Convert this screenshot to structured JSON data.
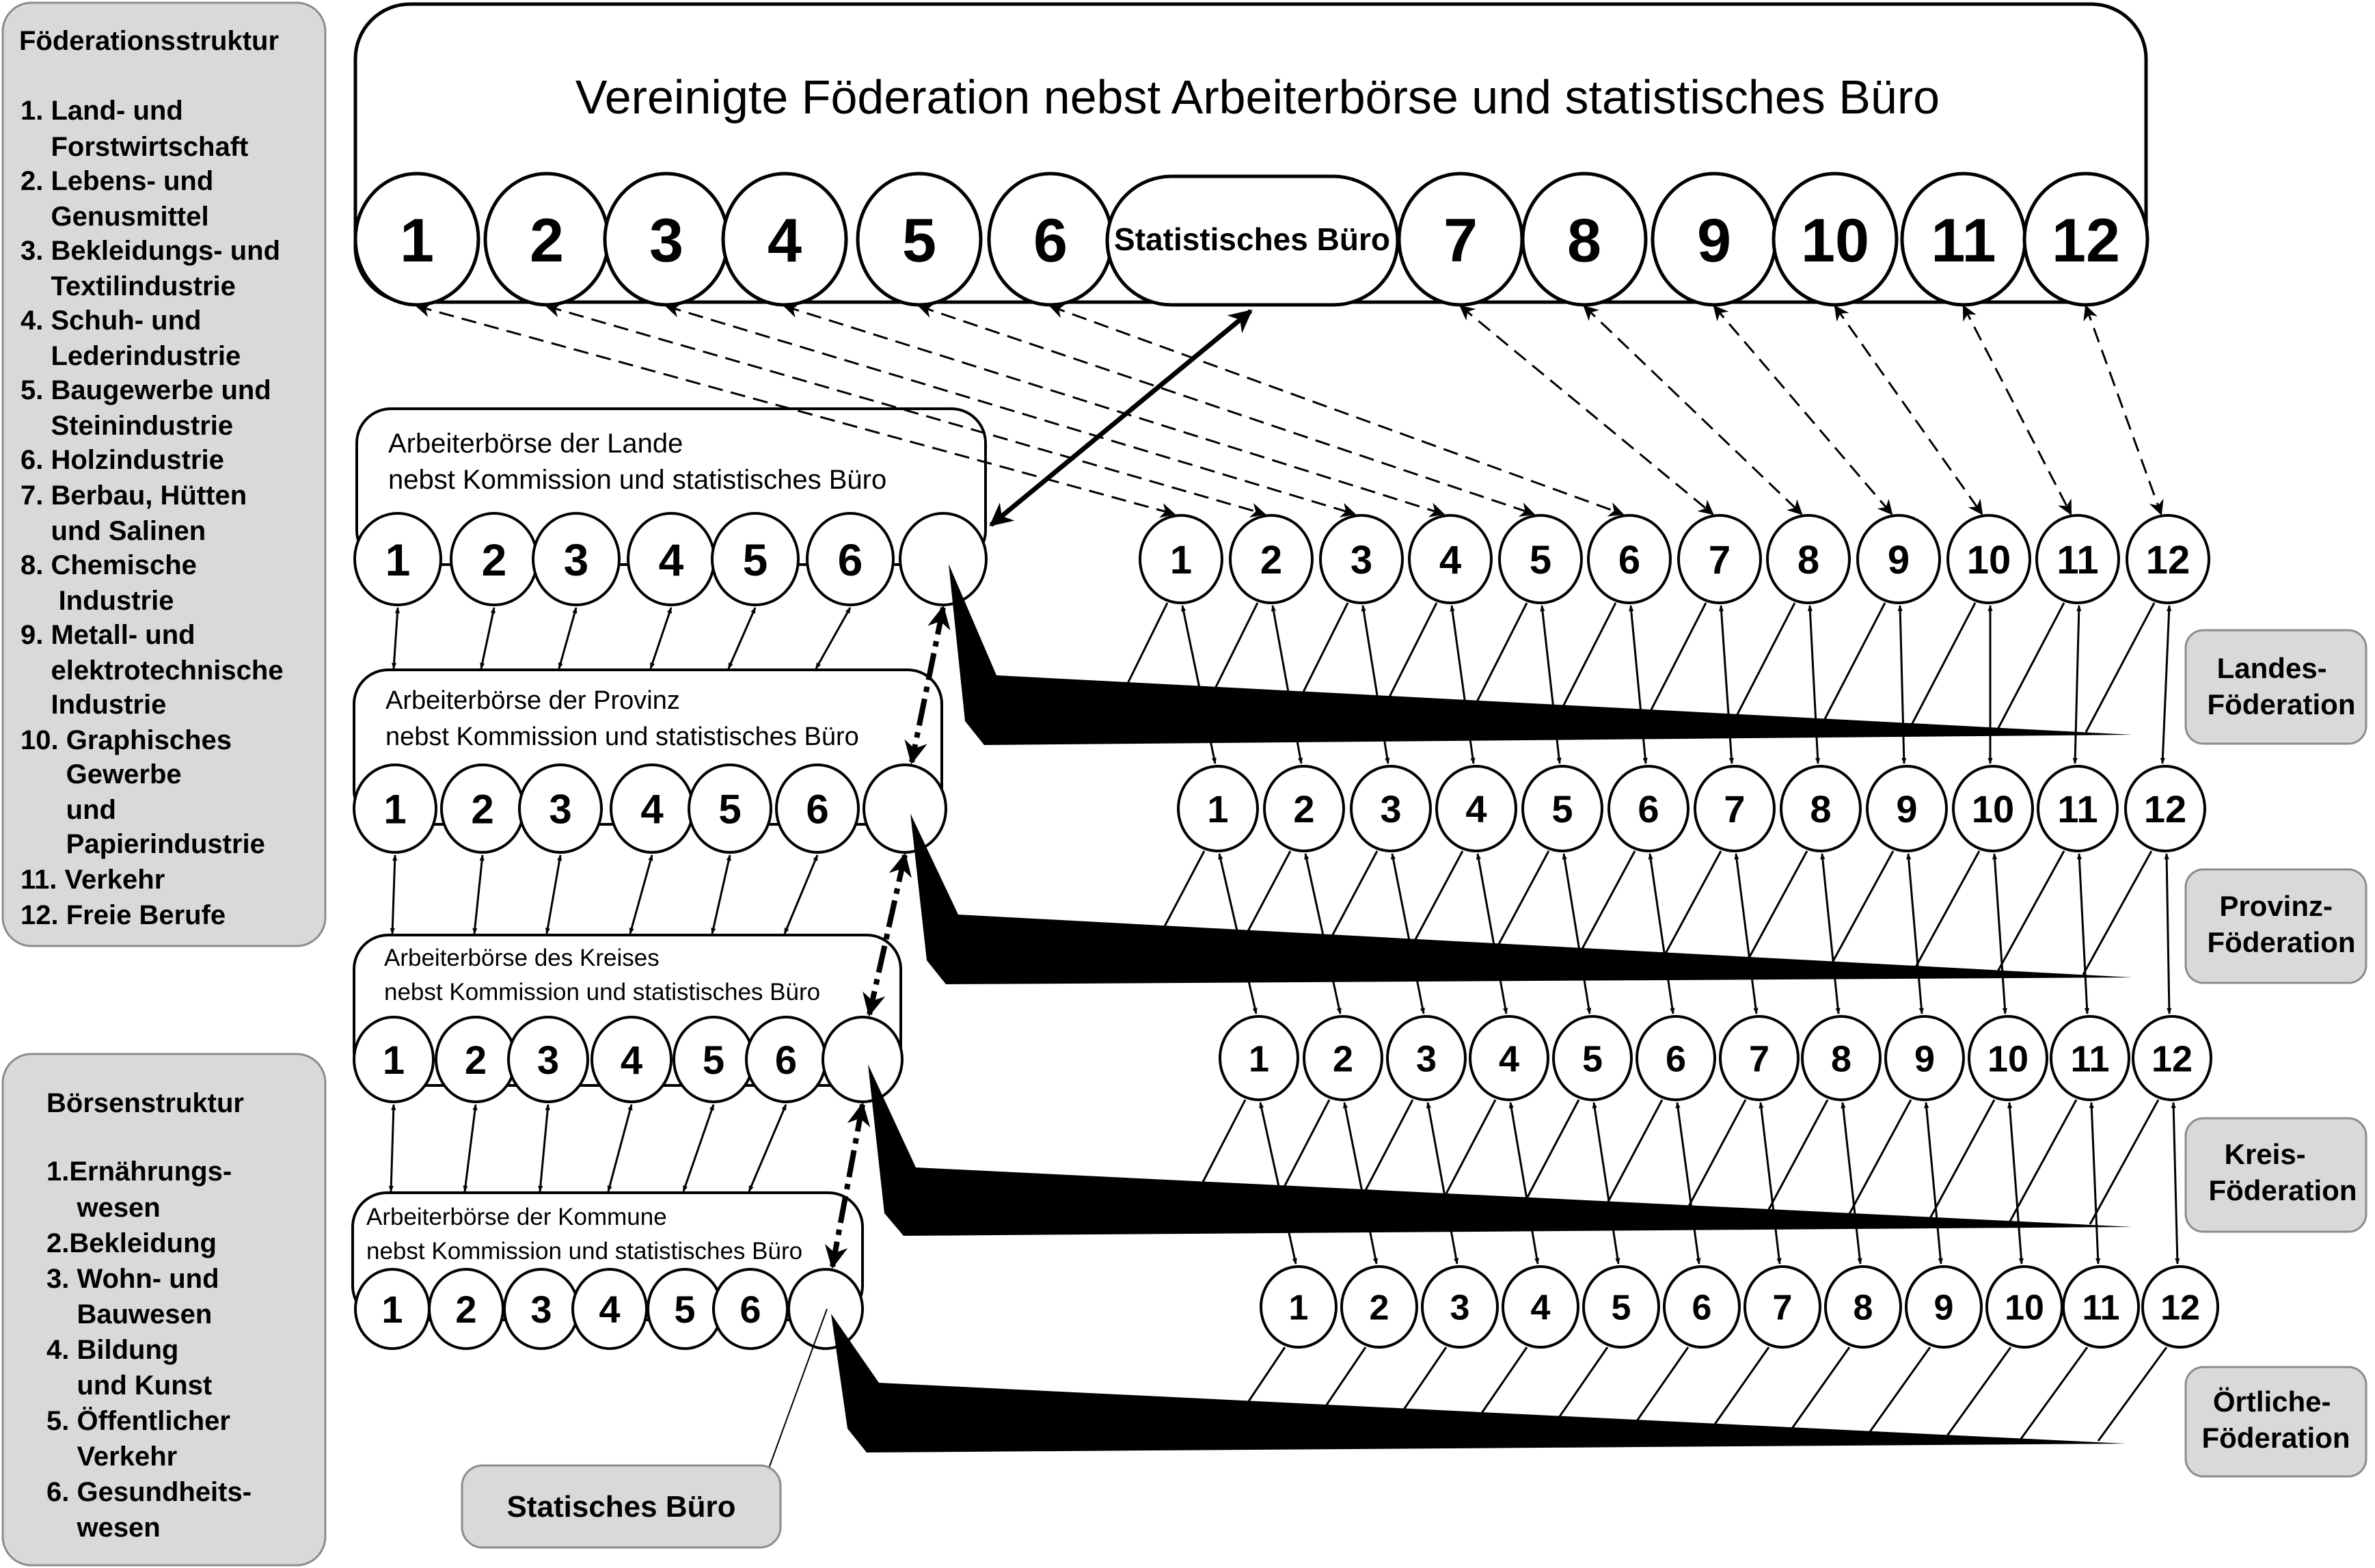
{
  "federation_structure": {
    "title": "Föderationsstruktur",
    "lines": [
      "1. Land- und",
      "    Forstwirtschaft",
      "2. Lebens- und",
      "    Genusmittel",
      "3. Bekleidungs- und",
      "    Textilindustrie",
      "4. Schuh- und",
      "    Lederindustrie",
      "5. Baugewerbe und",
      "    Steinindustrie",
      "6. Holzindustrie",
      "7. Berbau, Hütten",
      "    und Salinen",
      "8. Chemische",
      "     Industrie",
      "9. Metall- und",
      "    elektrotechnische",
      "    Industrie",
      "10. Graphisches",
      "      Gewerbe",
      "      und",
      "      Papierindustrie",
      "11. Verkehr",
      "12. Freie Berufe"
    ]
  },
  "exchange_structure": {
    "title": "Börsenstruktur",
    "lines": [
      "1.Ernährungs-",
      "    wesen",
      "2.Bekleidung",
      "3. Wohn- und",
      "    Bauwesen",
      "4. Bildung",
      "    und Kunst",
      "5. Öffentlicher",
      "    Verkehr",
      "6. Gesundheits-",
      "    wesen"
    ]
  },
  "top_federation": {
    "title": "Vereinigte Föderation nebst Arbeiterbörse und statistisches Büro",
    "left_nums": [
      "1",
      "2",
      "3",
      "4",
      "5",
      "6"
    ],
    "bureau": "Statistisches Büro",
    "right_nums": [
      "7",
      "8",
      "9",
      "10",
      "11",
      "12"
    ]
  },
  "exchanges": [
    {
      "title1": "Arbeiterbörse der Lande",
      "title2": "nebst Kommission und statistisches Büro",
      "nums": [
        "1",
        "2",
        "3",
        "4",
        "5",
        "6"
      ]
    },
    {
      "title1": "Arbeiterbörse der Provinz",
      "title2": "nebst Kommission und statistisches Büro",
      "nums": [
        "1",
        "2",
        "3",
        "4",
        "5",
        "6"
      ]
    },
    {
      "title1": "Arbeiterbörse des Kreises",
      "title2": "nebst Kommission und statistisches Büro",
      "nums": [
        "1",
        "2",
        "3",
        "4",
        "5",
        "6"
      ]
    },
    {
      "title1": "Arbeiterbörse der Kommune",
      "title2": "nebst Kommission und statistisches Büro",
      "nums": [
        "1",
        "2",
        "3",
        "4",
        "5",
        "6"
      ]
    }
  ],
  "federation_rows": [
    {
      "nums": [
        "1",
        "2",
        "3",
        "4",
        "5",
        "6",
        "7",
        "8",
        "9",
        "10",
        "11",
        "12"
      ],
      "label": [
        "Landes-",
        "Föderation"
      ]
    },
    {
      "nums": [
        "1",
        "2",
        "3",
        "4",
        "5",
        "6",
        "7",
        "8",
        "9",
        "10",
        "11",
        "12"
      ],
      "label": [
        "Provinz-",
        "Föderation"
      ]
    },
    {
      "nums": [
        "1",
        "2",
        "3",
        "4",
        "5",
        "6",
        "7",
        "8",
        "9",
        "10",
        "11",
        "12"
      ],
      "label": [
        "Kreis-",
        "Föderation"
      ]
    },
    {
      "nums": [
        "1",
        "2",
        "3",
        "4",
        "5",
        "6",
        "7",
        "8",
        "9",
        "10",
        "11",
        "12"
      ],
      "label": [
        "Örtliche-",
        "Föderation"
      ]
    }
  ],
  "bureau_label": "Statisches Büro",
  "colors": {
    "line": "#000000",
    "panel_fill": "#d9d9d9",
    "panel_stroke": "#8c8c8c",
    "background": "#ffffff"
  }
}
